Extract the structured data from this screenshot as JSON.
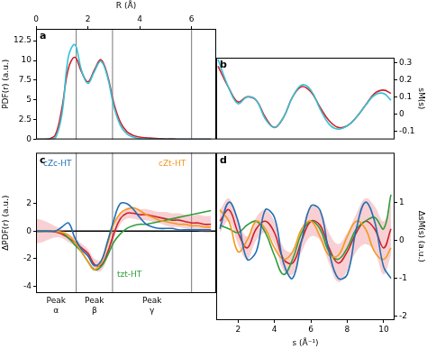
{
  "chart_data": [
    {
      "type": "line",
      "panel": "a",
      "x_label": "R (Å)",
      "y_label": "PDF(r) (a.u.)",
      "xlim": [
        0,
        6.95
      ],
      "xticks": [
        0,
        2,
        4,
        6
      ],
      "ylim": [
        0,
        14
      ],
      "yticks": [
        0,
        2.5,
        5,
        7.5,
        10,
        12.5
      ],
      "grid": false,
      "dividers": [
        1.55,
        2.95,
        6.0
      ],
      "x": [
        0,
        0.25,
        0.5,
        0.75,
        1,
        1.25,
        1.5,
        1.75,
        2,
        2.25,
        2.5,
        2.75,
        3,
        3.25,
        3.5,
        3.75,
        4,
        4.25,
        4.5,
        4.75,
        5,
        5.25,
        5.5,
        5.75,
        6,
        6.25,
        6.5,
        6.75
      ],
      "series": [
        {
          "color": "#33c3d6",
          "values": [
            0,
            0,
            0,
            0.2,
            3.2,
            10.5,
            12.0,
            8.8,
            7.1,
            8.6,
            9.9,
            8.0,
            4.2,
            1.8,
            0.7,
            0.3,
            0.1,
            0.05,
            0,
            0,
            0,
            0,
            0,
            0,
            0,
            0,
            0,
            0
          ]
        },
        {
          "color": "#d0202a",
          "values": [
            0,
            0,
            0.05,
            0.6,
            4.0,
            9.0,
            10.4,
            8.6,
            7.3,
            8.8,
            10.1,
            8.2,
            4.6,
            2.2,
            1.0,
            0.5,
            0.3,
            0.2,
            0.15,
            0.1,
            0.05,
            0.05,
            0,
            0,
            0,
            0,
            0,
            0
          ]
        }
      ]
    },
    {
      "type": "line",
      "panel": "b",
      "y_label": "sM(s)",
      "tick_labels": "y",
      "xlim": [
        0.8,
        10.6
      ],
      "xticks": [
        2,
        4,
        6,
        8,
        10
      ],
      "ylim": [
        -0.15,
        0.33
      ],
      "yticks": [
        -0.1,
        0,
        0.1,
        0.2,
        0.3
      ],
      "grid": false,
      "x": [
        0.9,
        1.5,
        2.0,
        2.5,
        3.0,
        3.5,
        4.0,
        4.5,
        5.0,
        5.5,
        6.0,
        6.5,
        7.0,
        7.5,
        8.0,
        8.5,
        9.0,
        9.5,
        10.0,
        10.4
      ],
      "series": [
        {
          "color": "#33c3d6",
          "values": [
            0.32,
            0.15,
            0.06,
            0.1,
            0.08,
            -0.03,
            -0.08,
            -0.02,
            0.1,
            0.17,
            0.14,
            0.03,
            -0.06,
            -0.09,
            -0.07,
            -0.02,
            0.05,
            0.11,
            0.12,
            0.08
          ]
        },
        {
          "color": "#d0202a",
          "values": [
            0.28,
            0.15,
            0.07,
            0.1,
            0.08,
            -0.02,
            -0.08,
            -0.02,
            0.1,
            0.16,
            0.13,
            0.04,
            -0.04,
            -0.08,
            -0.07,
            -0.02,
            0.05,
            0.12,
            0.14,
            0.12
          ]
        }
      ]
    },
    {
      "type": "line",
      "panel": "c",
      "y_label": "ΔPDF(r) (a.u.)",
      "tick_labels": "y",
      "xlim": [
        0,
        6.95
      ],
      "xticks": [
        0,
        2,
        4,
        6
      ],
      "ylim": [
        -4.5,
        5.7
      ],
      "yticks": [
        -4,
        -2,
        0,
        2
      ],
      "grid": false,
      "hline": 0,
      "dividers": [
        1.55,
        2.95,
        6.0
      ],
      "region_labels": [
        "Peak α",
        "Peak β",
        "Peak γ"
      ],
      "x": [
        0,
        0.25,
        0.5,
        0.75,
        1,
        1.25,
        1.5,
        1.75,
        2,
        2.25,
        2.5,
        2.75,
        3,
        3.25,
        3.5,
        3.75,
        4,
        4.25,
        4.5,
        4.75,
        5,
        5.25,
        5.5,
        5.75,
        6,
        6.25,
        6.5,
        6.75
      ],
      "series": [
        {
          "name": "cZc-HT",
          "color": "#1f6fb4",
          "values": [
            0,
            0,
            0,
            0,
            0.3,
            0.6,
            -0.5,
            -1.3,
            -1.8,
            -2.5,
            -2.2,
            -0.8,
            0.8,
            2.0,
            2.0,
            1.6,
            1.0,
            0.5,
            0.3,
            0.2,
            0.2,
            0.2,
            0.1,
            0.1,
            0.1,
            0.1,
            0.1,
            0.1
          ]
        },
        {
          "name": "cZt-HT",
          "color": "#f39a1e",
          "values": [
            0,
            0,
            0,
            0,
            -0.1,
            -0.3,
            -0.8,
            -1.5,
            -2.2,
            -2.8,
            -2.3,
            -1.0,
            0.5,
            1.3,
            1.6,
            1.7,
            1.5,
            1.2,
            1.0,
            0.8,
            0.7,
            0.6,
            0.5,
            0.5,
            0.4,
            0.4,
            0.3,
            0.3
          ]
        },
        {
          "name": "tzt-HT",
          "color": "#2e9e3a",
          "values": [
            0,
            0,
            0,
            0,
            -0.1,
            -0.5,
            -1.0,
            -1.5,
            -2.2,
            -2.8,
            -2.6,
            -1.8,
            -0.8,
            -0.2,
            0.2,
            0.4,
            0.5,
            0.5,
            0.6,
            0.7,
            0.8,
            0.9,
            1.0,
            1.1,
            1.2,
            1.3,
            1.4,
            1.5
          ]
        },
        {
          "color": "#d0202a",
          "values": [
            0,
            0,
            0,
            -0.05,
            -0.2,
            -0.5,
            -0.8,
            -1.2,
            -1.6,
            -2.4,
            -2.5,
            -1.6,
            -0.2,
            0.9,
            1.3,
            1.3,
            1.2,
            1.2,
            1.1,
            1.0,
            0.9,
            0.8,
            0.8,
            0.7,
            0.6,
            0.6,
            0.5,
            0.5
          ],
          "uncertainty": [
            0.9,
            0.8,
            0.6,
            0.4,
            0.3,
            0.3,
            0.3,
            0.3,
            0.3,
            0.4,
            0.4,
            0.4,
            0.4,
            0.4,
            0.4,
            0.4,
            0.4,
            0.4,
            0.4,
            0.4,
            0.5,
            0.5,
            0.5,
            0.5,
            0.5,
            0.6,
            0.6,
            0.6
          ]
        }
      ]
    },
    {
      "type": "line",
      "panel": "d",
      "x_label": "s (Å⁻¹)",
      "y_label": "ΔsM(s) (a.u.)",
      "xlim": [
        0.8,
        10.6
      ],
      "xticks": [
        2,
        4,
        6,
        8,
        10
      ],
      "ylim": [
        -2.1,
        2.3
      ],
      "yticks": [
        -2,
        -1,
        0,
        1
      ],
      "grid": false,
      "x": [
        1.0,
        1.5,
        2.0,
        2.5,
        3.0,
        3.5,
        4.0,
        4.5,
        5.0,
        5.5,
        6.0,
        6.5,
        7.0,
        7.5,
        8.0,
        8.5,
        9.0,
        9.5,
        10.0,
        10.4
      ],
      "series": [
        {
          "color": "#1f6fb4",
          "values": [
            0.3,
            1.0,
            0.5,
            -0.5,
            -0.3,
            0.8,
            0.6,
            -0.6,
            -1.0,
            0.0,
            0.9,
            0.8,
            -0.3,
            -1.0,
            -0.9,
            0.3,
            1.0,
            0.5,
            -0.7,
            -1.0
          ]
        },
        {
          "color": "#f39a1e",
          "values": [
            0.8,
            0.5,
            -0.3,
            0.0,
            0.5,
            0.3,
            -0.2,
            -0.5,
            -0.3,
            0.3,
            0.5,
            0.1,
            -0.4,
            -0.4,
            0.1,
            0.5,
            0.3,
            -0.3,
            -0.5,
            -0.2
          ]
        },
        {
          "color": "#2e9e3a",
          "values": [
            0.4,
            0.3,
            0.2,
            0.4,
            0.5,
            0.2,
            -0.4,
            -0.9,
            -0.5,
            0.2,
            0.5,
            0.3,
            -0.3,
            -0.5,
            -0.2,
            0.3,
            0.5,
            0.6,
            0.3,
            1.2
          ]
        },
        {
          "color": "#d0202a",
          "values": [
            0.5,
            0.8,
            0.2,
            -0.2,
            0.3,
            0.5,
            0.2,
            -0.5,
            -0.6,
            0.0,
            0.5,
            0.4,
            -0.2,
            -0.6,
            -0.3,
            0.2,
            0.5,
            0.3,
            -0.2,
            0.3
          ],
          "uncertainty": [
            0.3,
            0.3,
            0.3,
            0.3,
            0.3,
            0.3,
            0.3,
            0.3,
            0.3,
            0.3,
            0.4,
            0.4,
            0.4,
            0.5,
            0.5,
            0.5,
            0.6,
            0.6,
            0.7,
            0.7
          ]
        }
      ]
    }
  ]
}
